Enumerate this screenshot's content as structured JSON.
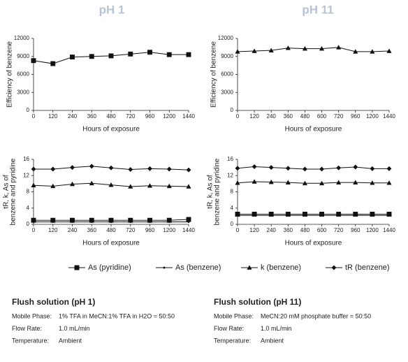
{
  "chart_data": [
    {
      "type": "line",
      "title": "pH 1",
      "ylabel": [
        "Efficiency of benzene"
      ],
      "xlabel": "Hours of exposure",
      "categories": [
        "0",
        "120",
        "240",
        "360",
        "480",
        "720",
        "960",
        "1200",
        "1440"
      ],
      "series": [
        {
          "marker": "square",
          "color": "#111",
          "values": [
            8300,
            7800,
            8900,
            9000,
            9100,
            9400,
            9700,
            9300,
            9300
          ]
        }
      ],
      "ylim": [
        0,
        12000
      ],
      "yticks": [
        0,
        3000,
        6000,
        9000,
        12000
      ]
    },
    {
      "type": "line",
      "title": "pH 11",
      "ylabel": [
        "Efficiency of benzene"
      ],
      "xlabel": "Hours of exposure",
      "categories": [
        "0",
        "120",
        "240",
        "360",
        "480",
        "600",
        "720",
        "960",
        "1200",
        "1440"
      ],
      "series": [
        {
          "marker": "triangle",
          "color": "#111",
          "values": [
            9800,
            9900,
            10000,
            10400,
            10300,
            10300,
            10500,
            9800,
            9800,
            9900
          ]
        }
      ],
      "ylim": [
        0,
        12000
      ],
      "yticks": [
        0,
        3000,
        6000,
        9000,
        12000
      ]
    },
    {
      "type": "line",
      "ylabel": [
        "tR, k, As of",
        "benzene and pyridine"
      ],
      "xlabel": "Hours of exposure",
      "categories": [
        "0",
        "120",
        "240",
        "360",
        "480",
        "720",
        "960",
        "1200",
        "1440"
      ],
      "series": [
        {
          "name": "As (pyridine)",
          "marker": "square",
          "color": "#111",
          "values": [
            1.0,
            1.0,
            1.0,
            1.0,
            1.0,
            1.0,
            1.0,
            1.0,
            1.2
          ]
        },
        {
          "name": "As (benzene)",
          "marker": "dot",
          "color": "#111",
          "values": [
            0.6,
            0.6,
            0.6,
            0.6,
            0.6,
            0.6,
            0.6,
            0.6,
            0.6
          ]
        },
        {
          "name": "k (benzene)",
          "marker": "triangle",
          "color": "#111",
          "values": [
            9.6,
            9.4,
            9.9,
            10.1,
            9.7,
            9.3,
            9.5,
            9.4,
            9.3
          ]
        },
        {
          "name": "tR (benzene)",
          "marker": "diamond",
          "color": "#111",
          "values": [
            13.6,
            13.6,
            14.0,
            14.3,
            13.9,
            13.5,
            13.7,
            13.6,
            13.4
          ]
        }
      ],
      "ylim": [
        0,
        16
      ],
      "yticks": [
        0,
        4,
        8,
        12,
        16
      ]
    },
    {
      "type": "line",
      "ylabel": [
        "tR, k, As of",
        "benzene and pyridine"
      ],
      "xlabel": "Hours of exposure",
      "categories": [
        "0",
        "120",
        "240",
        "360",
        "480",
        "600",
        "720",
        "960",
        "1200",
        "1440"
      ],
      "series": [
        {
          "marker": "square",
          "color": "#111",
          "values": [
            2.5,
            2.5,
            2.5,
            2.5,
            2.5,
            2.5,
            2.5,
            2.5,
            2.5,
            2.5
          ]
        },
        {
          "marker": "dot",
          "color": "#111",
          "values": [
            2.2,
            2.2,
            2.2,
            2.2,
            2.2,
            2.2,
            2.2,
            2.2,
            2.2,
            2.2
          ]
        },
        {
          "marker": "triangle",
          "color": "#111",
          "values": [
            10.2,
            10.5,
            10.4,
            10.3,
            10.1,
            10.1,
            10.3,
            10.3,
            10.2,
            10.2
          ]
        },
        {
          "marker": "diamond",
          "color": "#111",
          "values": [
            13.8,
            14.2,
            14.0,
            13.8,
            13.6,
            13.6,
            13.9,
            14.1,
            13.7,
            13.7
          ]
        }
      ],
      "ylim": [
        0,
        16
      ],
      "yticks": [
        0,
        4,
        8,
        12,
        16
      ]
    }
  ],
  "flush": [
    {
      "title": "Flush solution (pH 1)",
      "rows": [
        [
          "Mobile Phase:",
          "1% TFA in MeCN:1% TFA in H2O = 50:50"
        ],
        [
          "Flow Rate:",
          "1.0 mL/min"
        ],
        [
          "Temperature:",
          "Ambient"
        ]
      ]
    },
    {
      "title": "Flush solution (pH 11)",
      "rows": [
        [
          "Mobile Phase:",
          "MeCN:20 mM phosphate buffer = 50:50"
        ],
        [
          "Flow Rate:",
          "1.0 mL/min"
        ],
        [
          "Temperature:",
          "Ambient"
        ]
      ]
    }
  ]
}
